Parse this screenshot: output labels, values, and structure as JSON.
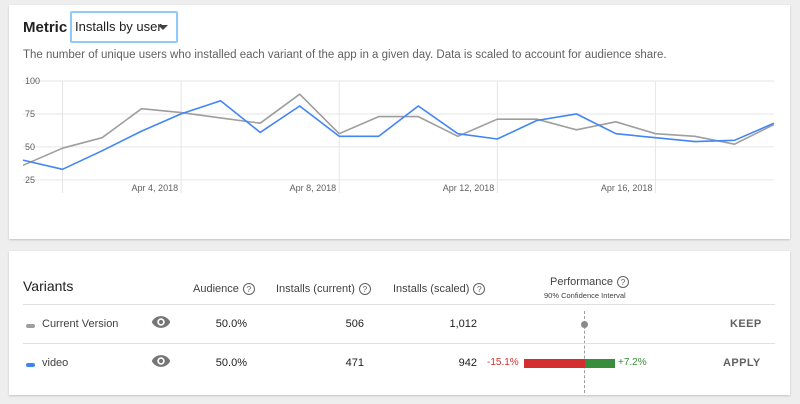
{
  "metric": {
    "label": "Metric",
    "selected": "Installs by user",
    "description": "The number of unique users who installed each variant of the app in a given day. Data is scaled to account for audience share."
  },
  "chart_data": {
    "type": "line",
    "y_ticks": [
      "100",
      "75",
      "50",
      "25"
    ],
    "ylim": [
      15,
      100
    ],
    "x_labels": [
      "Apr 4, 2018",
      "Apr 8, 2018",
      "Apr 12, 2018",
      "Apr 16, 2018"
    ],
    "x_label_index": [
      4,
      8,
      12,
      16
    ],
    "series": [
      {
        "name": "Current Version",
        "color": "#9e9e9e",
        "values": [
          36,
          49,
          57,
          79,
          76,
          72,
          68,
          90,
          60,
          73,
          73,
          58,
          71,
          71,
          63,
          69,
          60,
          58,
          52,
          67
        ]
      },
      {
        "name": "video",
        "color": "#4285f4",
        "values": [
          40,
          33,
          47,
          62,
          75,
          85,
          61,
          81,
          58,
          58,
          81,
          60,
          56,
          70,
          75,
          60,
          57,
          54,
          55,
          68
        ]
      }
    ]
  },
  "variants": {
    "title": "Variants",
    "headers": {
      "audience": "Audience",
      "installs_current": "Installs (current)",
      "installs_scaled": "Installs (scaled)",
      "performance": "Performance",
      "confidence": "90% Confidence Interval",
      "help": "?"
    },
    "rows": [
      {
        "name": "Current Version",
        "color": "#9e9e9e",
        "audience": "50.0%",
        "installs_current": "506",
        "installs_scaled": "1,012",
        "action": "KEEP"
      },
      {
        "name": "video",
        "color": "#4285f4",
        "audience": "50.0%",
        "installs_current": "471",
        "installs_scaled": "942",
        "ci_low": "-15.1%",
        "ci_high": "+7.2%",
        "action": "APPLY"
      }
    ]
  }
}
